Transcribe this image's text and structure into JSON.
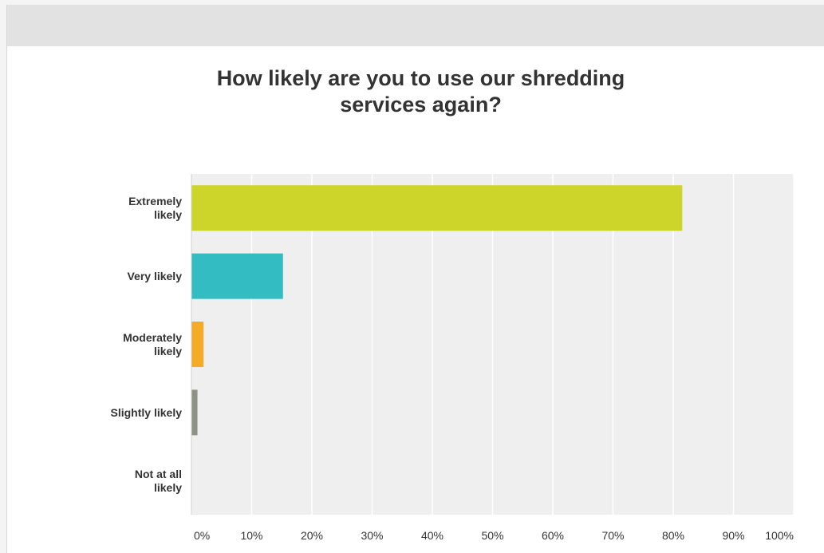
{
  "chart_data": {
    "type": "bar",
    "orientation": "horizontal",
    "title": "How likely are you to use our shredding\nservices again?",
    "xlabel": "",
    "ylabel": "",
    "categories": [
      {
        "lines": [
          "Extremely",
          "likely"
        ]
      },
      {
        "lines": [
          "Very likely"
        ]
      },
      {
        "lines": [
          "Moderately",
          "likely"
        ]
      },
      {
        "lines": [
          "Slightly likely"
        ]
      },
      {
        "lines": [
          "Not at all",
          "likely"
        ]
      }
    ],
    "values": [
      81.5,
      15.2,
      2.0,
      1.0,
      0.0
    ],
    "colors": [
      "#cdd42a",
      "#33bdc2",
      "#f5ab25",
      "#8e9286",
      "#cccccc"
    ],
    "xlim": [
      0,
      100
    ],
    "xticks": [
      0,
      10,
      20,
      30,
      40,
      50,
      60,
      70,
      80,
      90,
      100
    ],
    "xtick_labels": [
      "0%",
      "10%",
      "20%",
      "30%",
      "40%",
      "50%",
      "60%",
      "70%",
      "80%",
      "90%",
      "100%"
    ],
    "grid": true,
    "legend": "none"
  },
  "style": {
    "plot_background": "#efefef",
    "grid_color": "#ffffff",
    "text_color": "#333333"
  }
}
